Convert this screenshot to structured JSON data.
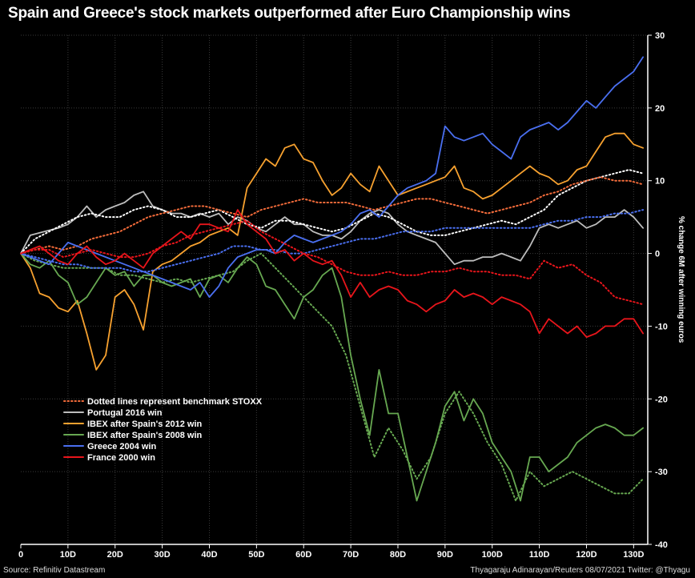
{
  "title": "Spain and Greece's stock markets outperformed after Euro Championship wins",
  "source": "Source: Refinitiv Datastream",
  "credit": "Thyagaraju Adinarayan/Reuters 08/07/2021 Twitter: @Thyagu",
  "chart_data": {
    "type": "line",
    "title": "Spain and Greece's stock markets outperformed after Euro Championship wins",
    "ylabel": "% change 6M after winning euros",
    "xlabel": "",
    "xlim": [
      0,
      133
    ],
    "ylim": [
      -40,
      30
    ],
    "x_ticks": [
      0,
      10,
      20,
      30,
      40,
      50,
      60,
      70,
      80,
      90,
      100,
      110,
      120,
      130
    ],
    "x_tick_labels": [
      "0",
      "10D",
      "20D",
      "30D",
      "40D",
      "50D",
      "60D",
      "70D",
      "80D",
      "90D",
      "100D",
      "110D",
      "120D",
      "130D"
    ],
    "y_ticks": [
      30,
      20,
      10,
      0,
      -10,
      -20,
      -30,
      -40
    ],
    "y_tick_labels": [
      "30",
      "20",
      "10",
      "0",
      "-10",
      "-20",
      "-30",
      "-40"
    ],
    "grid": true,
    "legend_position": "bottom-left",
    "legend": [
      {
        "label": "Dotted lines represent benchmark STOXX",
        "color": "#f26b3a",
        "style": "dotted"
      },
      {
        "label": "Portugal 2016 win",
        "color": "#bdbdbd",
        "style": "solid"
      },
      {
        "label": "IBEX after Spain's 2012 win",
        "color": "#f7a12f",
        "style": "solid"
      },
      {
        "label": "IBEX after Spain's 2008 win",
        "color": "#67a851",
        "style": "solid"
      },
      {
        "label": "Greece 2004 win",
        "color": "#4a6ff0",
        "style": "solid"
      },
      {
        "label": "France 2000 win",
        "color": "#e8151b",
        "style": "solid"
      }
    ],
    "series": [
      {
        "name": "Portugal 2016 win",
        "color": "#bdbdbd",
        "style": "solid",
        "x": [
          0,
          2,
          5,
          8,
          10,
          12,
          14,
          16,
          18,
          20,
          22,
          24,
          26,
          28,
          30,
          32,
          34,
          36,
          38,
          40,
          42,
          44,
          46,
          48,
          50,
          52,
          54,
          56,
          58,
          60,
          62,
          64,
          66,
          68,
          70,
          72,
          74,
          76,
          78,
          80,
          82,
          84,
          86,
          88,
          90,
          92,
          94,
          96,
          98,
          100,
          102,
          104,
          106,
          108,
          110,
          112,
          114,
          116,
          118,
          120,
          122,
          124,
          126,
          128,
          130,
          132
        ],
        "y": [
          0,
          2.5,
          3,
          3.5,
          4,
          5,
          6.5,
          5,
          6,
          6.5,
          7,
          8,
          8.5,
          6.5,
          6,
          5.5,
          5.5,
          5,
          5.5,
          5,
          5.5,
          4,
          5,
          4.5,
          3.5,
          3,
          4,
          5,
          4,
          4,
          3,
          2.5,
          2.5,
          2,
          3,
          4.5,
          5.5,
          6,
          5.5,
          4,
          3,
          2.5,
          2,
          1.5,
          0,
          -1.5,
          -1,
          -1,
          -0.5,
          -0.5,
          0,
          -0.5,
          -1,
          1,
          3.5,
          4,
          3.5,
          4,
          4.5,
          3.5,
          4,
          5,
          5,
          6,
          5,
          3.5
        ]
      },
      {
        "name": "Portugal 2016 STOXX",
        "color": "#ffffff",
        "style": "dotted",
        "x": [
          0,
          3,
          6,
          9,
          12,
          15,
          18,
          21,
          24,
          27,
          30,
          33,
          36,
          39,
          42,
          45,
          48,
          51,
          54,
          57,
          60,
          63,
          66,
          69,
          72,
          75,
          78,
          81,
          84,
          87,
          90,
          93,
          96,
          99,
          102,
          105,
          108,
          111,
          114,
          117,
          120,
          123,
          126,
          129,
          132
        ],
        "y": [
          0,
          2,
          3,
          4,
          5,
          5.5,
          5,
          5,
          6,
          6.5,
          6,
          5,
          5,
          5.5,
          6,
          5,
          4,
          3.5,
          4.5,
          4.5,
          4,
          3.5,
          3,
          3.5,
          4.5,
          5.5,
          5,
          4,
          3,
          2.5,
          2.5,
          3,
          3.5,
          4,
          4.5,
          4,
          5,
          6,
          8,
          9,
          10,
          10.5,
          11,
          11.5,
          11
        ]
      },
      {
        "name": "IBEX after Spain's 2012 win",
        "color": "#f7a12f",
        "style": "solid",
        "x": [
          0,
          2,
          4,
          6,
          8,
          10,
          12,
          14,
          16,
          18,
          20,
          22,
          24,
          26,
          28,
          30,
          32,
          34,
          36,
          38,
          40,
          42,
          44,
          46,
          48,
          50,
          52,
          54,
          56,
          58,
          60,
          62,
          64,
          66,
          68,
          70,
          72,
          74,
          76,
          78,
          80,
          82,
          84,
          86,
          88,
          90,
          92,
          94,
          96,
          98,
          100,
          102,
          104,
          106,
          108,
          110,
          112,
          114,
          116,
          118,
          120,
          122,
          124,
          126,
          128,
          130,
          132
        ],
        "y": [
          0,
          -2,
          -5.5,
          -6,
          -7.5,
          -8,
          -6.5,
          -11,
          -16,
          -14,
          -6,
          -5,
          -7,
          -10.5,
          -2.5,
          -1.5,
          -1,
          0,
          1,
          1.5,
          2.5,
          3,
          3.5,
          2.5,
          9,
          11,
          13,
          12,
          14.5,
          15,
          13,
          12.5,
          10,
          8,
          9,
          11,
          9.5,
          8.5,
          12,
          10,
          8,
          8.5,
          9,
          9.5,
          10,
          10.5,
          12,
          9,
          8.5,
          7.5,
          8,
          9,
          10,
          11,
          12,
          11,
          10.5,
          9.5,
          10,
          11.5,
          12,
          14,
          16,
          16.5,
          16.5,
          15,
          14.5
        ]
      },
      {
        "name": "IBEX after Spain's 2012 STOXX",
        "color": "#f26b3a",
        "style": "dotted",
        "x": [
          0,
          3,
          6,
          9,
          12,
          15,
          18,
          21,
          24,
          27,
          30,
          33,
          36,
          39,
          42,
          45,
          48,
          51,
          54,
          57,
          60,
          63,
          66,
          69,
          72,
          75,
          78,
          81,
          84,
          87,
          90,
          93,
          96,
          99,
          102,
          105,
          108,
          111,
          114,
          117,
          120,
          123,
          126,
          129,
          132
        ],
        "y": [
          0,
          0.5,
          1,
          0.5,
          1,
          2,
          2.5,
          3,
          4,
          5,
          5.5,
          6,
          6.5,
          6.5,
          6,
          5.5,
          5,
          6,
          6.5,
          7,
          7.5,
          7,
          7,
          7,
          6.5,
          6,
          6.5,
          7,
          7.5,
          7.5,
          7,
          6.5,
          6,
          5.5,
          6,
          6.5,
          7,
          8,
          8.5,
          9.5,
          10,
          10.5,
          10,
          10,
          9.5
        ]
      },
      {
        "name": "IBEX after Spain's 2008 win",
        "color": "#67a851",
        "style": "solid",
        "x": [
          0,
          2,
          4,
          6,
          8,
          10,
          12,
          14,
          16,
          18,
          20,
          22,
          24,
          26,
          28,
          30,
          32,
          34,
          36,
          38,
          40,
          42,
          44,
          46,
          48,
          50,
          52,
          54,
          56,
          58,
          60,
          62,
          64,
          66,
          68,
          70,
          72,
          74,
          76,
          78,
          80,
          82,
          84,
          86,
          88,
          90,
          92,
          94,
          96,
          98,
          100,
          102,
          104,
          106,
          108,
          110,
          112,
          114,
          116,
          118,
          120,
          122,
          124,
          126,
          128,
          130,
          132
        ],
        "y": [
          0,
          -1.5,
          -2,
          -1,
          -3,
          -4,
          -7,
          -6,
          -4,
          -2,
          -3,
          -2.5,
          -4.5,
          -3,
          -3,
          -4,
          -4.5,
          -4,
          -3.5,
          -6,
          -3.5,
          -3,
          -4,
          -2,
          -0.5,
          -1.5,
          -4.5,
          -5,
          -7,
          -9,
          -6,
          -5,
          -3,
          -2,
          -6,
          -14,
          -20,
          -25,
          -16,
          -22,
          -22,
          -28,
          -34,
          -30,
          -26,
          -21,
          -19,
          -23,
          -20,
          -22,
          -26,
          -28,
          -30,
          -34,
          -28,
          -28,
          -30,
          -29,
          -28,
          -26,
          -25,
          -24,
          -23.5,
          -24,
          -25,
          -25,
          -24
        ]
      },
      {
        "name": "IBEX after Spain's 2008 STOXX",
        "color": "#67a851",
        "style": "dotted",
        "x": [
          0,
          3,
          6,
          9,
          12,
          15,
          18,
          21,
          24,
          27,
          30,
          33,
          36,
          39,
          42,
          45,
          48,
          51,
          54,
          57,
          60,
          63,
          66,
          69,
          72,
          75,
          78,
          81,
          84,
          87,
          90,
          93,
          96,
          99,
          102,
          105,
          108,
          111,
          114,
          117,
          120,
          123,
          126,
          129,
          132
        ],
        "y": [
          0,
          -1,
          -1.5,
          -2,
          -2,
          -2,
          -2,
          -3,
          -3,
          -3.5,
          -4,
          -3.5,
          -4,
          -3.5,
          -3,
          -2.5,
          -1,
          0,
          -2,
          -4,
          -6,
          -8,
          -10,
          -14,
          -21,
          -28,
          -24,
          -27,
          -31,
          -28,
          -22,
          -19,
          -22,
          -26,
          -29,
          -34,
          -30,
          -32,
          -31,
          -30,
          -31,
          -32,
          -33,
          -33,
          -31
        ]
      },
      {
        "name": "Greece 2004 win",
        "color": "#4a6ff0",
        "style": "solid",
        "x": [
          0,
          2,
          4,
          6,
          8,
          10,
          12,
          14,
          16,
          18,
          20,
          22,
          24,
          26,
          28,
          30,
          32,
          34,
          36,
          38,
          40,
          42,
          44,
          46,
          48,
          50,
          52,
          54,
          56,
          58,
          60,
          62,
          64,
          66,
          68,
          70,
          72,
          74,
          76,
          78,
          80,
          82,
          84,
          86,
          88,
          90,
          92,
          94,
          96,
          98,
          100,
          102,
          104,
          106,
          108,
          110,
          112,
          114,
          116,
          118,
          120,
          122,
          124,
          126,
          128,
          130,
          132
        ],
        "y": [
          0,
          -0.5,
          -1,
          -1.5,
          0,
          1.5,
          1,
          0.5,
          0,
          -0.5,
          -1,
          -1.5,
          -2,
          -2.5,
          -3,
          -3.5,
          -4,
          -4.5,
          -5,
          -4,
          -6,
          -4.5,
          -2,
          -0.5,
          0,
          0.5,
          0.5,
          0,
          1.5,
          2.5,
          2,
          1.5,
          2,
          2.5,
          3,
          4,
          5.5,
          6,
          5,
          6.5,
          8,
          9,
          9.5,
          10,
          11,
          17.5,
          16,
          15.5,
          16,
          16.5,
          15,
          14,
          13,
          16,
          17,
          17.5,
          18,
          17,
          18,
          19.5,
          21,
          20,
          21.5,
          23,
          24,
          25,
          27
        ]
      },
      {
        "name": "Greece 2004 STOXX",
        "color": "#4a6ff0",
        "style": "dotted",
        "x": [
          0,
          3,
          6,
          9,
          12,
          15,
          18,
          21,
          24,
          27,
          30,
          33,
          36,
          39,
          42,
          45,
          48,
          51,
          54,
          57,
          60,
          63,
          66,
          69,
          72,
          75,
          78,
          81,
          84,
          87,
          90,
          93,
          96,
          99,
          102,
          105,
          108,
          111,
          114,
          117,
          120,
          123,
          126,
          129,
          132
        ],
        "y": [
          0,
          -0.5,
          -1,
          -1.5,
          -1.5,
          -2,
          -2,
          -2,
          -2.5,
          -2.5,
          -2,
          -1.5,
          -1,
          -0.5,
          0,
          1,
          1,
          0.5,
          0.5,
          0,
          0,
          0.5,
          1,
          1.5,
          2,
          2,
          2.5,
          3,
          3,
          3,
          3.5,
          3.5,
          3.5,
          3.5,
          3.5,
          3.5,
          3.5,
          4,
          4.5,
          4.5,
          5,
          5,
          5.5,
          5.5,
          6
        ]
      },
      {
        "name": "France 2000 win",
        "color": "#e8151b",
        "style": "solid",
        "x": [
          0,
          2,
          4,
          6,
          8,
          10,
          12,
          14,
          16,
          18,
          20,
          22,
          24,
          26,
          28,
          30,
          32,
          34,
          36,
          38,
          40,
          42,
          44,
          46,
          48,
          50,
          52,
          54,
          56,
          58,
          60,
          62,
          64,
          66,
          68,
          70,
          72,
          74,
          76,
          78,
          80,
          82,
          84,
          86,
          88,
          90,
          92,
          94,
          96,
          98,
          100,
          102,
          104,
          106,
          108,
          110,
          112,
          114,
          116,
          118,
          120,
          122,
          124,
          126,
          128,
          130,
          132
        ],
        "y": [
          0,
          0.5,
          1,
          0,
          -1,
          -1.5,
          0,
          1,
          -0.5,
          -1.5,
          -1,
          0,
          -1,
          -2,
          0,
          1,
          2,
          3,
          2,
          4,
          4,
          3.5,
          3,
          6,
          4,
          3,
          2,
          0,
          0.5,
          -1,
          0,
          -1,
          -1.5,
          -1,
          -3,
          -6,
          -4,
          -6,
          -5,
          -4.5,
          -5,
          -6.5,
          -7,
          -8,
          -7,
          -6.5,
          -5,
          -6,
          -5.5,
          -6,
          -7,
          -6,
          -6.5,
          -7,
          -8,
          -11,
          -9,
          -10,
          -11,
          -10,
          -11.5,
          -11,
          -10,
          -10,
          -9,
          -9,
          -11
        ]
      },
      {
        "name": "France 2000 STOXX",
        "color": "#e8151b",
        "style": "dotted",
        "x": [
          0,
          3,
          6,
          9,
          12,
          15,
          18,
          21,
          24,
          27,
          30,
          33,
          36,
          39,
          42,
          45,
          48,
          51,
          54,
          57,
          60,
          63,
          66,
          69,
          72,
          75,
          78,
          81,
          84,
          87,
          90,
          93,
          96,
          99,
          102,
          105,
          108,
          111,
          114,
          117,
          120,
          123,
          126,
          129,
          132
        ],
        "y": [
          0,
          0.5,
          0.5,
          -0.5,
          0,
          0.5,
          0,
          -0.5,
          -0.5,
          0,
          1,
          1.5,
          2.5,
          3,
          3.5,
          4,
          4.5,
          3,
          2,
          1,
          0,
          -0.5,
          -1.5,
          -2.5,
          -3,
          -3,
          -2.5,
          -3,
          -3,
          -2.5,
          -2.5,
          -2,
          -2.5,
          -2.5,
          -3,
          -3,
          -3.5,
          -1,
          -2,
          -1.5,
          -3,
          -4,
          -6,
          -6.5,
          -7
        ]
      }
    ]
  }
}
